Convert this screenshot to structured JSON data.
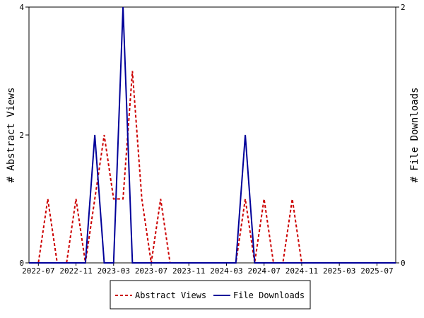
{
  "chart_data": {
    "type": "line",
    "x_ticks": [
      "2022-07",
      "2022-11",
      "2023-03",
      "2023-07",
      "2023-11",
      "2024-03",
      "2024-07",
      "2024-11",
      "2025-03",
      "2025-07"
    ],
    "y_left_label": "# Abstract Views",
    "y_right_label": "# File Downloads",
    "y_left_ticks": [
      "0",
      "2",
      "4"
    ],
    "y_right_ticks": [
      "0",
      "2"
    ],
    "y_left_range": [
      0,
      4
    ],
    "y_right_range": [
      0,
      2
    ],
    "x_range": [
      "2022-06",
      "2025-09"
    ],
    "grid": false,
    "legend_position": "bottom",
    "series": [
      {
        "name": "Abstract Views",
        "axis": "left",
        "color": "#cc0000",
        "style": "dashed",
        "x": [
          "2022-06",
          "2022-07",
          "2022-08",
          "2022-09",
          "2022-10",
          "2022-11",
          "2022-12",
          "2023-01",
          "2023-02",
          "2023-03",
          "2023-04",
          "2023-05",
          "2023-06",
          "2023-07",
          "2023-08",
          "2023-09",
          "2023-10",
          "2023-11",
          "2023-12",
          "2024-01",
          "2024-02",
          "2024-03",
          "2024-04",
          "2024-05",
          "2024-06",
          "2024-07",
          "2024-08",
          "2024-09",
          "2024-10",
          "2024-11",
          "2024-12",
          "2025-01",
          "2025-02",
          "2025-03",
          "2025-04",
          "2025-05",
          "2025-06",
          "2025-07",
          "2025-08",
          "2025-09"
        ],
        "values": [
          0,
          0,
          1,
          0,
          0,
          1,
          0,
          1,
          2,
          1,
          1,
          3,
          1,
          0,
          1,
          0,
          0,
          0,
          0,
          0,
          0,
          0,
          0,
          1,
          0,
          1,
          0,
          0,
          1,
          0,
          0,
          0,
          0,
          0,
          0,
          0,
          0,
          0,
          0,
          0
        ]
      },
      {
        "name": "File Downloads",
        "axis": "right",
        "color": "#000099",
        "style": "solid",
        "x": [
          "2022-06",
          "2022-07",
          "2022-08",
          "2022-09",
          "2022-10",
          "2022-11",
          "2022-12",
          "2023-01",
          "2023-02",
          "2023-03",
          "2023-04",
          "2023-05",
          "2023-06",
          "2023-07",
          "2023-08",
          "2023-09",
          "2023-10",
          "2023-11",
          "2023-12",
          "2024-01",
          "2024-02",
          "2024-03",
          "2024-04",
          "2024-05",
          "2024-06",
          "2024-07",
          "2024-08",
          "2024-09",
          "2024-10",
          "2024-11",
          "2024-12",
          "2025-01",
          "2025-02",
          "2025-03",
          "2025-04",
          "2025-05",
          "2025-06",
          "2025-07",
          "2025-08",
          "2025-09"
        ],
        "values": [
          0,
          0,
          0,
          0,
          0,
          0,
          0,
          1,
          0,
          0,
          2,
          0,
          0,
          0,
          0,
          0,
          0,
          0,
          0,
          0,
          0,
          0,
          0,
          1,
          0,
          0,
          0,
          0,
          0,
          0,
          0,
          0,
          0,
          0,
          0,
          0,
          0,
          0,
          0,
          0
        ]
      }
    ]
  }
}
